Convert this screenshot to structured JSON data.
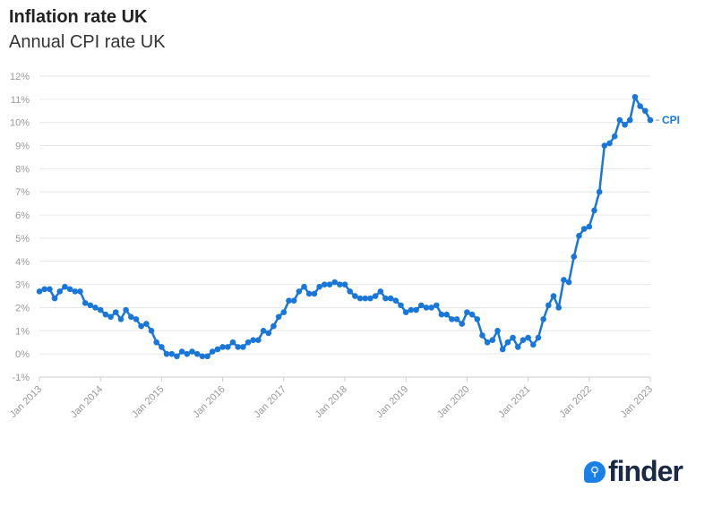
{
  "header": {
    "title": "Inflation rate UK",
    "subtitle": "Annual CPI rate UK"
  },
  "logo": {
    "text": "finder",
    "icon": "search-icon"
  },
  "chart_data": {
    "type": "line",
    "title": "Inflation rate UK",
    "subtitle": "Annual CPI rate UK",
    "xlabel": "",
    "ylabel": "",
    "ylim": [
      -1,
      12
    ],
    "y_ticks": [
      "-1%",
      "0%",
      "1%",
      "2%",
      "3%",
      "4%",
      "5%",
      "6%",
      "7%",
      "8%",
      "9%",
      "10%",
      "11%",
      "12%"
    ],
    "x_ticks": [
      "Jan 2013",
      "Jan 2014",
      "Jan 2015",
      "Jan 2016",
      "Jan 2017",
      "Jan 2018",
      "Jan 2019",
      "Jan 2020",
      "Jan 2021",
      "Jan 2022",
      "Jan 2023"
    ],
    "grid": true,
    "legend": "end-label",
    "colors": {
      "line": "#1877d8",
      "grid": "#e6e6e6",
      "tick": "#999999"
    },
    "start": "Jan 2013",
    "frequency": "monthly",
    "series": [
      {
        "name": "CPI",
        "values": [
          2.7,
          2.8,
          2.8,
          2.4,
          2.7,
          2.9,
          2.8,
          2.7,
          2.7,
          2.2,
          2.1,
          2.0,
          1.9,
          1.7,
          1.6,
          1.8,
          1.5,
          1.9,
          1.6,
          1.5,
          1.2,
          1.3,
          1.0,
          0.5,
          0.3,
          0.0,
          0.0,
          -0.1,
          0.1,
          0.0,
          0.1,
          0.0,
          -0.1,
          -0.1,
          0.1,
          0.2,
          0.3,
          0.3,
          0.5,
          0.3,
          0.3,
          0.5,
          0.6,
          0.6,
          1.0,
          0.9,
          1.2,
          1.6,
          1.8,
          2.3,
          2.3,
          2.7,
          2.9,
          2.6,
          2.6,
          2.9,
          3.0,
          3.0,
          3.1,
          3.0,
          3.0,
          2.7,
          2.5,
          2.4,
          2.4,
          2.4,
          2.5,
          2.7,
          2.4,
          2.4,
          2.3,
          2.1,
          1.8,
          1.9,
          1.9,
          2.1,
          2.0,
          2.0,
          2.1,
          1.7,
          1.7,
          1.5,
          1.5,
          1.3,
          1.8,
          1.7,
          1.5,
          0.8,
          0.5,
          0.6,
          1.0,
          0.2,
          0.5,
          0.7,
          0.3,
          0.6,
          0.7,
          0.4,
          0.7,
          1.5,
          2.1,
          2.5,
          2.0,
          3.2,
          3.1,
          4.2,
          5.1,
          5.4,
          5.5,
          6.2,
          7.0,
          9.0,
          9.1,
          9.4,
          10.1,
          9.9,
          10.1,
          11.1,
          10.7,
          10.5,
          10.1
        ]
      }
    ]
  }
}
